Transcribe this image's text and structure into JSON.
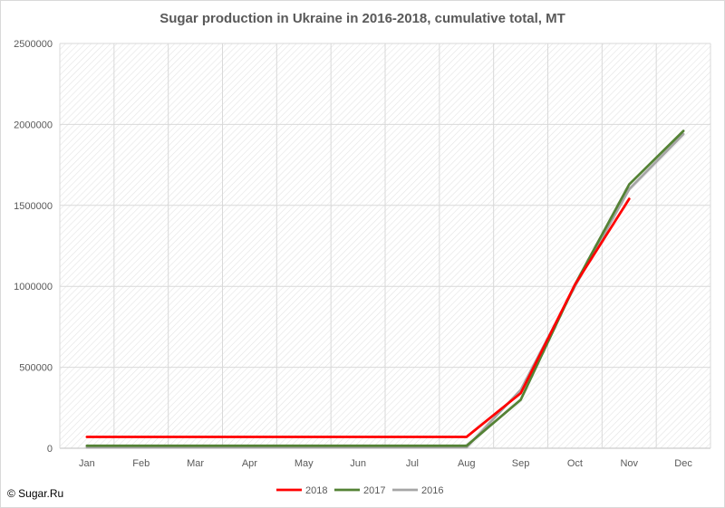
{
  "chart_data": {
    "type": "line",
    "title": "Sugar production in Ukraine in 2016-2018, cumulative total, MT",
    "xlabel": "",
    "ylabel": "",
    "categories": [
      "Jan",
      "Feb",
      "Mar",
      "Apr",
      "May",
      "Jun",
      "Jul",
      "Aug",
      "Sep",
      "Oct",
      "Nov",
      "Dec"
    ],
    "ylim": [
      0,
      2500000
    ],
    "yticks": [
      "0",
      "500000",
      "1000000",
      "1500000",
      "2000000",
      "2500000"
    ],
    "grid": true,
    "legend_position": "bottom",
    "series": [
      {
        "name": "2018",
        "color": "#ff0000",
        "values": [
          70000,
          70000,
          70000,
          70000,
          70000,
          70000,
          70000,
          70000,
          340000,
          1010000,
          1540000,
          null
        ]
      },
      {
        "name": "2017",
        "color": "#548235",
        "values": [
          15000,
          15000,
          15000,
          15000,
          15000,
          15000,
          15000,
          15000,
          300000,
          1010000,
          1630000,
          1960000
        ]
      },
      {
        "name": "2016",
        "color": "#a6a6a6",
        "values": [
          5000,
          5000,
          5000,
          5000,
          5000,
          5000,
          5000,
          5000,
          360000,
          1000000,
          1600000,
          1940000
        ]
      }
    ]
  },
  "footer": {
    "copyright": "© Sugar.Ru"
  }
}
